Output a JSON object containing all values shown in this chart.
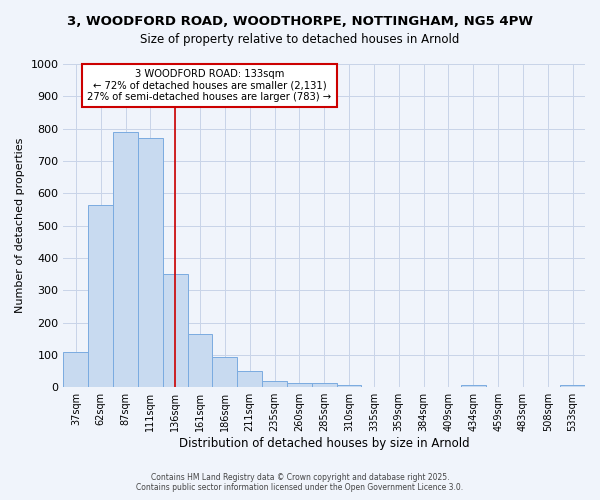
{
  "title_line1": "3, WOODFORD ROAD, WOODTHORPE, NOTTINGHAM, NG5 4PW",
  "title_line2": "Size of property relative to detached houses in Arnold",
  "xlabel": "Distribution of detached houses by size in Arnold",
  "ylabel": "Number of detached properties",
  "bins": [
    "37sqm",
    "62sqm",
    "87sqm",
    "111sqm",
    "136sqm",
    "161sqm",
    "186sqm",
    "211sqm",
    "235sqm",
    "260sqm",
    "285sqm",
    "310sqm",
    "335sqm",
    "359sqm",
    "384sqm",
    "409sqm",
    "434sqm",
    "459sqm",
    "483sqm",
    "508sqm",
    "533sqm"
  ],
  "values": [
    110,
    565,
    790,
    770,
    350,
    165,
    95,
    50,
    18,
    12,
    12,
    8,
    0,
    0,
    0,
    0,
    8,
    0,
    0,
    0,
    8
  ],
  "bar_color": "#c8daf0",
  "bar_edge_color": "#7aabe0",
  "property_line_label": "3 WOODFORD ROAD: 133sqm",
  "annotation_line1": "← 72% of detached houses are smaller (2,131)",
  "annotation_line2": "27% of semi-detached houses are larger (783) →",
  "annotation_box_color": "#ffffff",
  "annotation_box_edge_color": "#cc0000",
  "vline_color": "#cc0000",
  "vline_x": 4,
  "ylim": [
    0,
    1000
  ],
  "yticks": [
    0,
    100,
    200,
    300,
    400,
    500,
    600,
    700,
    800,
    900,
    1000
  ],
  "bg_color": "#f0f4fb",
  "grid_color": "#c8d4e8",
  "footer_line1": "Contains HM Land Registry data © Crown copyright and database right 2025.",
  "footer_line2": "Contains public sector information licensed under the Open Government Licence 3.0."
}
